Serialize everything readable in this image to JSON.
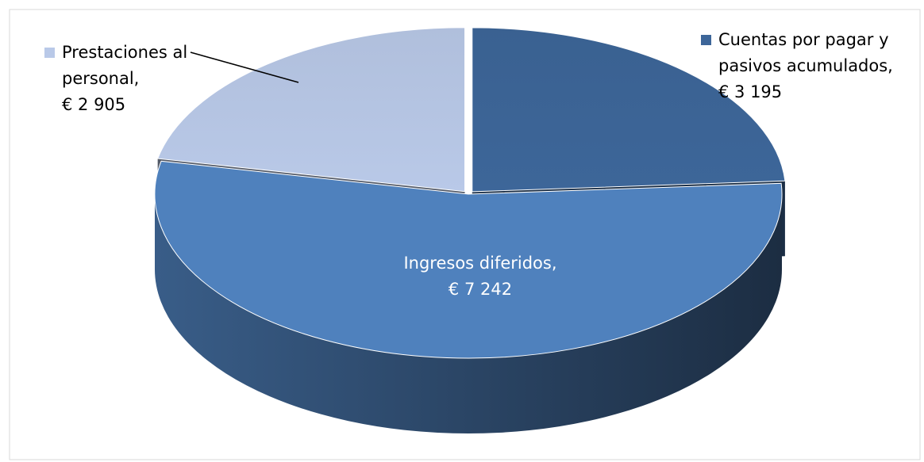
{
  "chart_data": {
    "type": "pie",
    "categories": [
      "Cuentas por pagar y pasivos acumulados,",
      "Ingresos diferidos,",
      "Prestaciones al personal,"
    ],
    "values": [
      3195,
      7242,
      2905
    ],
    "value_labels": [
      "€ 3 195",
      "€ 7 242",
      "€ 2 905"
    ],
    "colors": [
      "#3d6699",
      "#4f81bd",
      "#b9c9e8"
    ]
  }
}
